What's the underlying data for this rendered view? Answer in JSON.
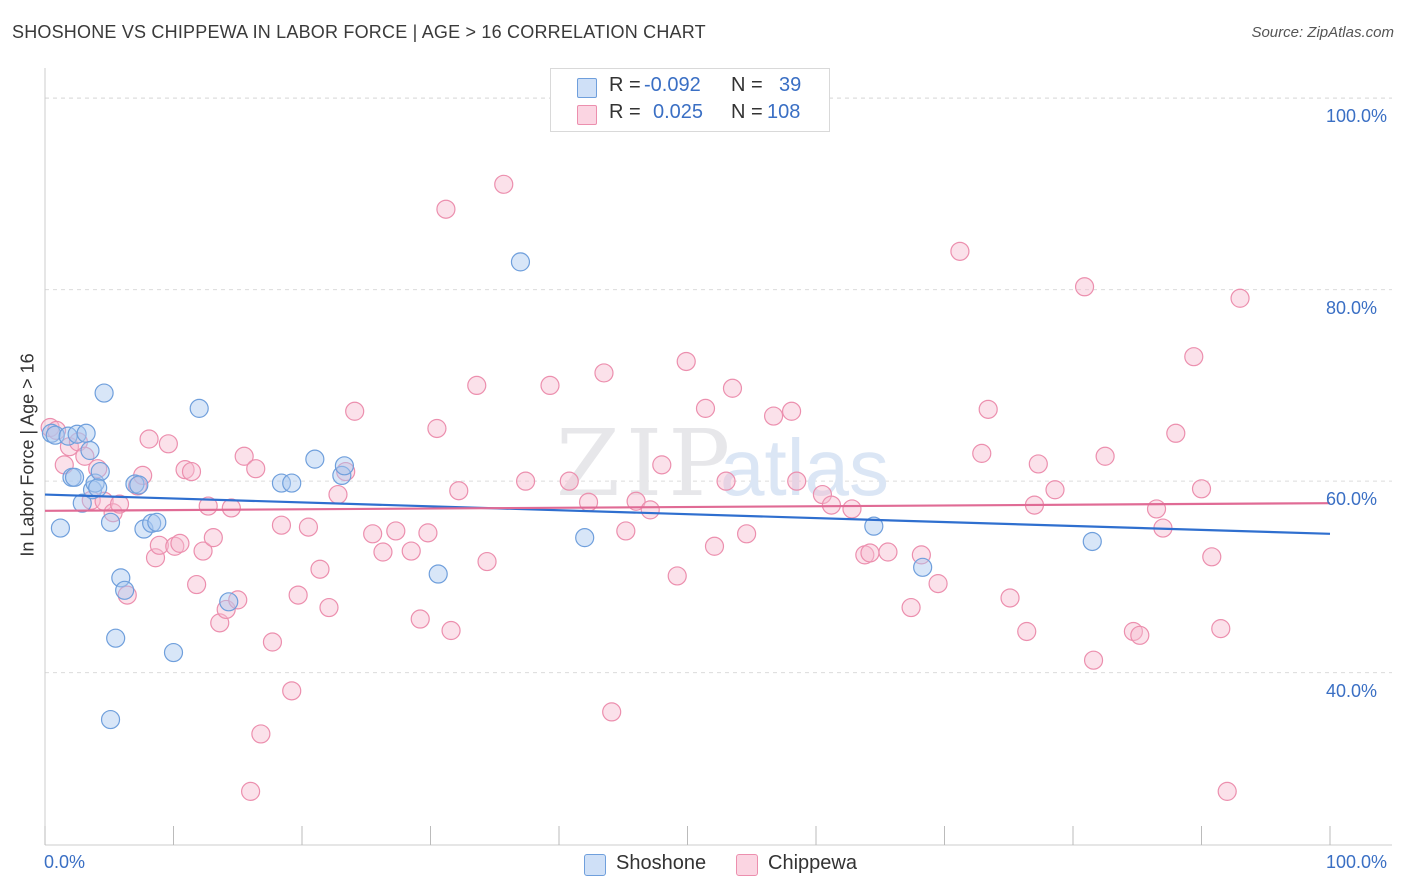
{
  "title": "SHOSHONE VS CHIPPEWA IN LABOR FORCE | AGE > 16 CORRELATION CHART",
  "source": "Source: ZipAtlas.com",
  "watermark": {
    "zip": "ZIP",
    "atlas": "atlas"
  },
  "legend": {
    "r_label": "R =",
    "n_label": "N =",
    "rows": [
      {
        "r": "-0.092",
        "n": "39",
        "color": "#a9c8f0",
        "stroke": "#6f9fdc"
      },
      {
        "r": "0.025",
        "n": "108",
        "color": "#f7bcd0",
        "stroke": "#ec8fae"
      }
    ]
  },
  "bottom_legend": [
    "Shoshone",
    "Chippewa"
  ],
  "chart_data": {
    "type": "scatter",
    "title": "SHOSHONE VS CHIPPEWA IN LABOR FORCE | AGE > 16 CORRELATION CHART",
    "xlabel": "",
    "ylabel": "In Labor Force | Age > 16",
    "xlim": [
      0,
      100
    ],
    "ylim": [
      22,
      102
    ],
    "x_tick_labels": [
      "0.0%",
      "100.0%"
    ],
    "y_tick_labels": [
      "100.0%",
      "80.0%",
      "60.0%",
      "40.0%"
    ],
    "y_ticks": [
      100,
      80,
      60,
      40
    ],
    "grid": true,
    "series": [
      {
        "name": "Shoshone",
        "color": "#6f9fdc",
        "fill": "#a9c8f0",
        "trend_color": "#2f6fcf",
        "trend": [
          [
            0,
            58.6
          ],
          [
            100,
            54.5
          ]
        ],
        "points": [
          [
            0.5,
            65.0
          ],
          [
            0.8,
            64.8
          ],
          [
            1.2,
            55.1
          ],
          [
            1.8,
            64.7
          ],
          [
            2.1,
            60.4
          ],
          [
            2.3,
            60.4
          ],
          [
            2.5,
            64.9
          ],
          [
            2.9,
            57.7
          ],
          [
            3.2,
            65.0
          ],
          [
            3.5,
            63.2
          ],
          [
            3.7,
            59.1
          ],
          [
            3.9,
            59.8
          ],
          [
            4.3,
            61.0
          ],
          [
            4.6,
            69.2
          ],
          [
            5.1,
            55.7
          ],
          [
            5.5,
            43.6
          ],
          [
            5.9,
            49.9
          ],
          [
            6.2,
            48.6
          ],
          [
            5.1,
            35.1
          ],
          [
            7.0,
            59.7
          ],
          [
            7.3,
            59.6
          ],
          [
            7.7,
            55.0
          ],
          [
            8.3,
            55.6
          ],
          [
            8.7,
            55.7
          ],
          [
            10.0,
            42.1
          ],
          [
            12.0,
            67.6
          ],
          [
            14.3,
            47.4
          ],
          [
            18.4,
            59.8
          ],
          [
            19.2,
            59.8
          ],
          [
            21.0,
            62.3
          ],
          [
            23.1,
            60.6
          ],
          [
            23.3,
            61.6
          ],
          [
            30.6,
            50.3
          ],
          [
            37.0,
            82.9
          ],
          [
            42.0,
            54.1
          ],
          [
            64.5,
            55.3
          ],
          [
            68.3,
            51.0
          ],
          [
            81.5,
            53.7
          ],
          [
            4.1,
            59.3
          ]
        ]
      },
      {
        "name": "Chippewa",
        "color": "#ec8fae",
        "fill": "#f7bcd0",
        "trend_color": "#e06b95",
        "trend": [
          [
            0,
            56.9
          ],
          [
            100,
            57.7
          ]
        ],
        "points": [
          [
            0.4,
            65.6
          ],
          [
            0.9,
            65.3
          ],
          [
            1.5,
            61.7
          ],
          [
            1.9,
            63.6
          ],
          [
            2.6,
            64.1
          ],
          [
            3.1,
            62.6
          ],
          [
            3.6,
            58.0
          ],
          [
            4.1,
            61.3
          ],
          [
            4.6,
            57.9
          ],
          [
            5.3,
            56.7
          ],
          [
            5.8,
            57.6
          ],
          [
            6.4,
            48.1
          ],
          [
            7.2,
            59.5
          ],
          [
            7.6,
            60.6
          ],
          [
            8.1,
            64.4
          ],
          [
            8.6,
            52.0
          ],
          [
            8.9,
            53.3
          ],
          [
            9.6,
            63.9
          ],
          [
            10.1,
            53.2
          ],
          [
            10.5,
            53.5
          ],
          [
            10.9,
            61.2
          ],
          [
            11.4,
            61.0
          ],
          [
            11.8,
            49.2
          ],
          [
            12.3,
            52.7
          ],
          [
            12.7,
            57.4
          ],
          [
            13.1,
            54.1
          ],
          [
            13.6,
            45.2
          ],
          [
            14.1,
            46.6
          ],
          [
            14.5,
            57.2
          ],
          [
            15.0,
            47.6
          ],
          [
            15.5,
            62.6
          ],
          [
            16.0,
            27.6
          ],
          [
            16.4,
            61.3
          ],
          [
            16.8,
            33.6
          ],
          [
            17.7,
            43.2
          ],
          [
            18.4,
            55.4
          ],
          [
            19.2,
            38.1
          ],
          [
            19.7,
            48.1
          ],
          [
            20.5,
            55.2
          ],
          [
            21.4,
            50.8
          ],
          [
            22.1,
            46.8
          ],
          [
            22.8,
            58.6
          ],
          [
            23.4,
            61.0
          ],
          [
            24.1,
            67.3
          ],
          [
            25.5,
            54.5
          ],
          [
            26.3,
            52.6
          ],
          [
            27.3,
            54.8
          ],
          [
            28.5,
            52.7
          ],
          [
            29.2,
            45.6
          ],
          [
            29.8,
            54.6
          ],
          [
            30.5,
            65.5
          ],
          [
            31.2,
            88.4
          ],
          [
            31.6,
            44.4
          ],
          [
            32.2,
            59.0
          ],
          [
            33.6,
            70.0
          ],
          [
            34.4,
            51.6
          ],
          [
            35.7,
            91.0
          ],
          [
            37.4,
            60.0
          ],
          [
            39.3,
            70.0
          ],
          [
            40.8,
            60.0
          ],
          [
            42.3,
            57.8
          ],
          [
            43.5,
            71.3
          ],
          [
            44.1,
            35.9
          ],
          [
            45.2,
            54.8
          ],
          [
            46.0,
            57.9
          ],
          [
            47.1,
            57.0
          ],
          [
            48.0,
            61.7
          ],
          [
            49.2,
            50.1
          ],
          [
            49.9,
            72.5
          ],
          [
            51.4,
            67.6
          ],
          [
            52.1,
            53.2
          ],
          [
            53.5,
            69.7
          ],
          [
            54.6,
            54.5
          ],
          [
            56.7,
            66.8
          ],
          [
            58.1,
            67.3
          ],
          [
            60.5,
            58.6
          ],
          [
            61.2,
            57.5
          ],
          [
            62.8,
            57.1
          ],
          [
            63.8,
            52.3
          ],
          [
            64.2,
            52.5
          ],
          [
            65.6,
            52.6
          ],
          [
            67.4,
            46.8
          ],
          [
            68.2,
            52.3
          ],
          [
            69.5,
            49.3
          ],
          [
            71.2,
            84.0
          ],
          [
            72.9,
            62.9
          ],
          [
            73.4,
            67.5
          ],
          [
            75.1,
            47.8
          ],
          [
            76.4,
            44.3
          ],
          [
            77.0,
            57.5
          ],
          [
            77.3,
            61.8
          ],
          [
            78.6,
            59.1
          ],
          [
            80.9,
            80.3
          ],
          [
            81.6,
            41.3
          ],
          [
            82.5,
            62.6
          ],
          [
            84.7,
            44.3
          ],
          [
            85.2,
            43.9
          ],
          [
            86.5,
            57.1
          ],
          [
            87.0,
            55.1
          ],
          [
            88.0,
            65.0
          ],
          [
            89.4,
            73.0
          ],
          [
            90.0,
            59.2
          ],
          [
            90.8,
            52.1
          ],
          [
            91.5,
            44.6
          ],
          [
            92.0,
            27.6
          ],
          [
            93.0,
            79.1
          ],
          [
            53.0,
            60.0
          ],
          [
            58.5,
            60.0
          ]
        ]
      }
    ]
  }
}
